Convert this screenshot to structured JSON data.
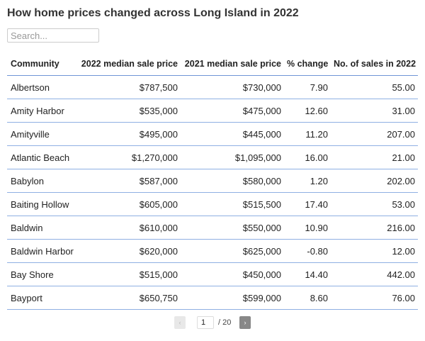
{
  "header": {
    "title": "How home prices changed across Long Island in 2022"
  },
  "search": {
    "placeholder": "Search..."
  },
  "table": {
    "columns": [
      "Community",
      "2022 median sale price",
      "2021 median sale price",
      "% change",
      "No. of sales in 2022"
    ],
    "rows": [
      [
        "Albertson",
        "$787,500",
        "$730,000",
        "7.90",
        "55.00"
      ],
      [
        "Amity Harbor",
        "$535,000",
        "$475,000",
        "12.60",
        "31.00"
      ],
      [
        "Amityville",
        "$495,000",
        "$445,000",
        "11.20",
        "207.00"
      ],
      [
        "Atlantic Beach",
        "$1,270,000",
        "$1,095,000",
        "16.00",
        "21.00"
      ],
      [
        "Babylon",
        "$587,000",
        "$580,000",
        "1.20",
        "202.00"
      ],
      [
        "Baiting Hollow",
        "$605,000",
        "$515,500",
        "17.40",
        "53.00"
      ],
      [
        "Baldwin",
        "$610,000",
        "$550,000",
        "10.90",
        "216.00"
      ],
      [
        "Baldwin Harbor",
        "$620,000",
        "$625,000",
        "-0.80",
        "12.00"
      ],
      [
        "Bay Shore",
        "$515,000",
        "$450,000",
        "14.40",
        "442.00"
      ],
      [
        "Bayport",
        "$650,750",
        "$599,000",
        "8.60",
        "76.00"
      ]
    ]
  },
  "pagination": {
    "page": "1",
    "total": "/ 20"
  }
}
